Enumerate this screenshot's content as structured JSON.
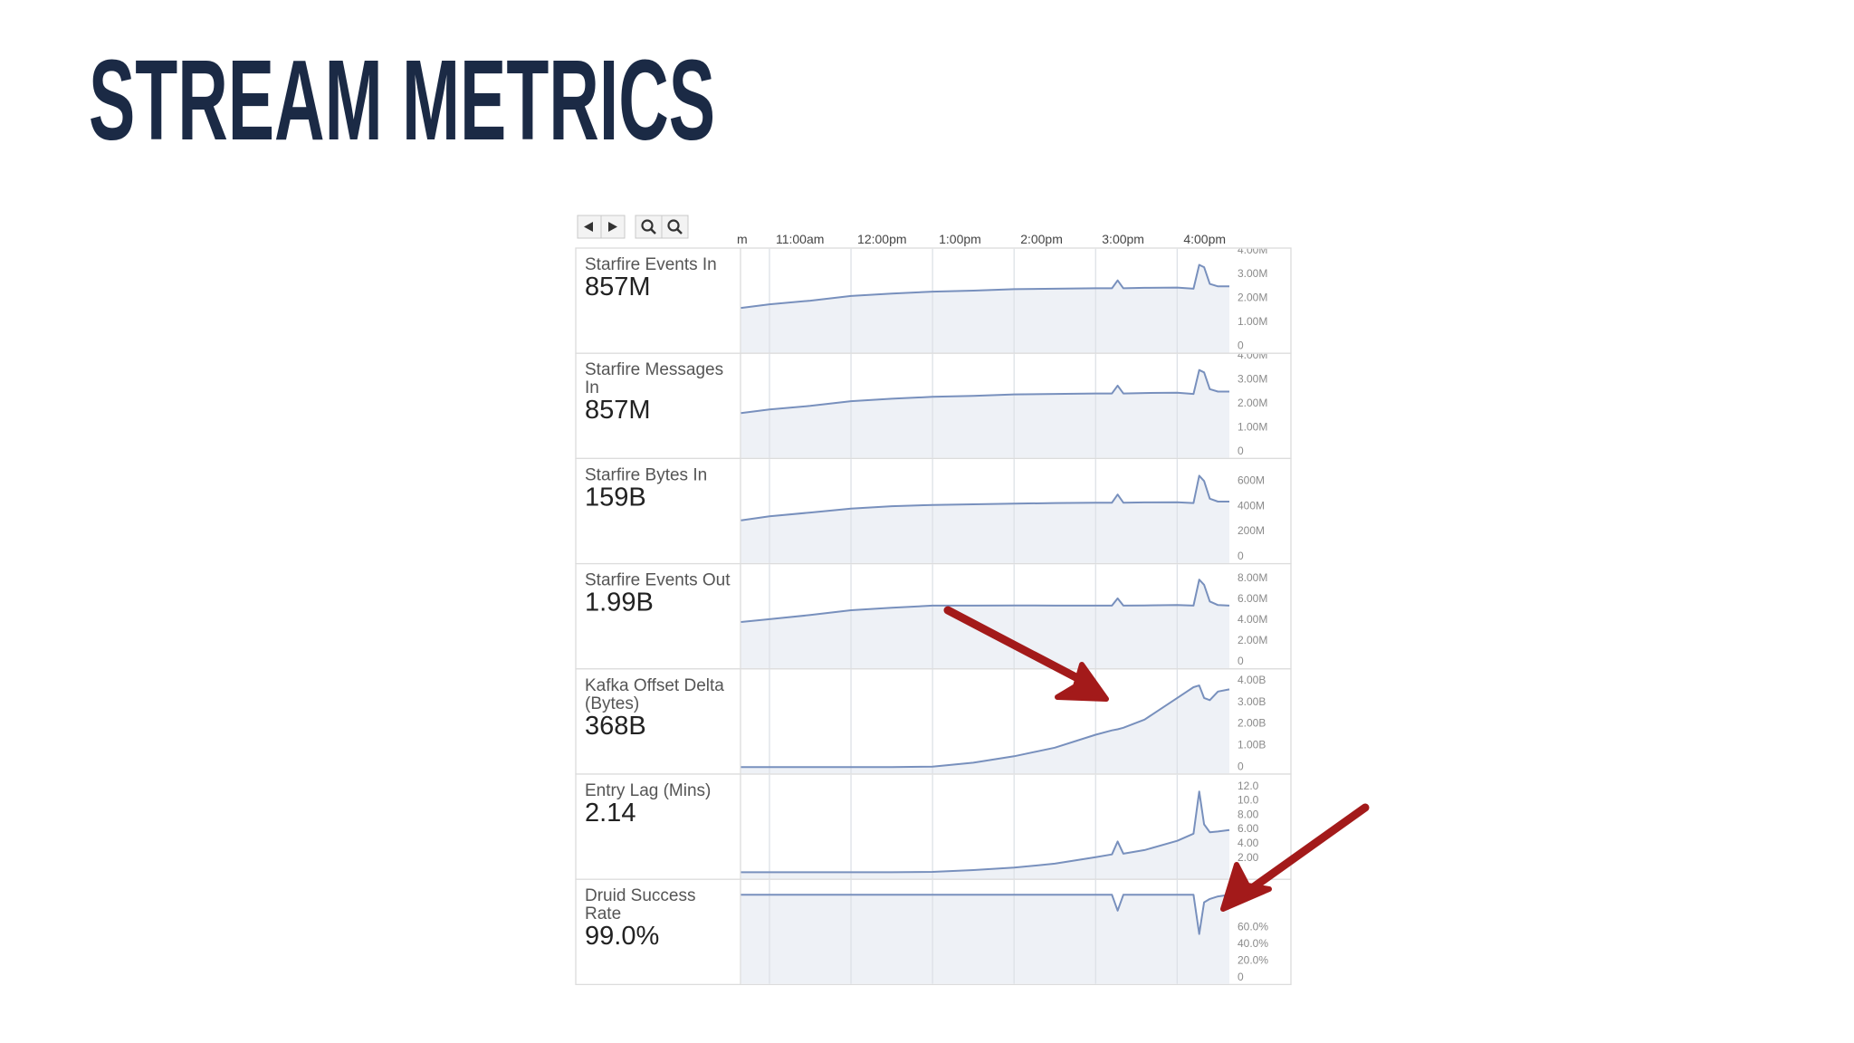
{
  "title": "STREAM METRICS",
  "time_axis": {
    "xticks": [
      {
        "value": 10,
        "label": "m"
      },
      {
        "value": 11,
        "label": "11:00am"
      },
      {
        "value": 12,
        "label": "12:00pm"
      },
      {
        "value": 13,
        "label": "1:00pm"
      },
      {
        "value": 14,
        "label": "2:00pm"
      },
      {
        "value": 15,
        "label": "3:00pm"
      },
      {
        "value": 16,
        "label": "4:00pm"
      }
    ]
  },
  "chart_data": [
    {
      "type": "line",
      "title_lines": [
        "Starfire Events In"
      ],
      "value_text": "857M",
      "color": "#7890bd",
      "xlim": [
        10.645,
        16.64
      ],
      "ylim": [
        0,
        4000000
      ],
      "yticks": [
        0,
        {
          "value": 1000000,
          "label": "1.00M"
        },
        {
          "value": 2000000,
          "label": "2.00M"
        },
        {
          "value": 3000000,
          "label": "3.00M"
        },
        {
          "value": 4000000,
          "label": "4.00M"
        }
      ],
      "x": [
        10.65,
        11,
        11.5,
        12,
        12.5,
        13,
        13.5,
        14,
        14.5,
        15,
        15.2,
        15.27,
        15.34,
        15.6,
        16,
        16.2,
        16.27,
        16.33,
        16.4,
        16.5,
        16.64
      ],
      "values": [
        1600000,
        1750000,
        1900000,
        2100000,
        2200000,
        2280000,
        2320000,
        2380000,
        2400000,
        2420000,
        2420000,
        2750000,
        2420000,
        2440000,
        2450000,
        2400000,
        3400000,
        3300000,
        2600000,
        2500000,
        2500000
      ]
    },
    {
      "type": "line",
      "title_lines": [
        "Starfire Messages",
        "In"
      ],
      "value_text": "857M",
      "color": "#7890bd",
      "xlim": [
        10.645,
        16.64
      ],
      "ylim": [
        0,
        4000000
      ],
      "yticks": [
        0,
        {
          "value": 1000000,
          "label": "1.00M"
        },
        {
          "value": 2000000,
          "label": "2.00M"
        },
        {
          "value": 3000000,
          "label": "3.00M"
        },
        {
          "value": 4000000,
          "label": "4.00M"
        }
      ],
      "x": [
        10.65,
        11,
        11.5,
        12,
        12.5,
        13,
        13.5,
        14,
        14.5,
        15,
        15.2,
        15.27,
        15.34,
        15.6,
        16,
        16.2,
        16.27,
        16.33,
        16.4,
        16.5,
        16.64
      ],
      "values": [
        1600000,
        1750000,
        1900000,
        2100000,
        2200000,
        2280000,
        2320000,
        2380000,
        2400000,
        2420000,
        2420000,
        2750000,
        2420000,
        2440000,
        2450000,
        2400000,
        3400000,
        3300000,
        2600000,
        2500000,
        2500000
      ]
    },
    {
      "type": "line",
      "title_lines": [
        "Starfire Bytes In"
      ],
      "value_text": "159B",
      "color": "#7890bd",
      "xlim": [
        10.645,
        16.64
      ],
      "ylim": [
        0,
        760000000
      ],
      "yticks": [
        0,
        {
          "value": 200000000,
          "label": "200M"
        },
        {
          "value": 400000000,
          "label": "400M"
        },
        {
          "value": 600000000,
          "label": "600M"
        }
      ],
      "x": [
        10.65,
        11,
        11.5,
        12,
        12.5,
        13,
        13.5,
        14,
        14.5,
        15,
        15.2,
        15.27,
        15.34,
        15.6,
        16,
        16.2,
        16.27,
        16.33,
        16.4,
        16.5,
        16.64
      ],
      "values": [
        288000000,
        320000000,
        350000000,
        381000000,
        400000000,
        410000000,
        415000000,
        420000000,
        425000000,
        428000000,
        428000000,
        493000000,
        428000000,
        430000000,
        432000000,
        425000000,
        642000000,
        600000000,
        460000000,
        437000000,
        437000000
      ]
    },
    {
      "type": "line",
      "title_lines": [
        "Starfire Events Out"
      ],
      "value_text": "1.99B",
      "color": "#7890bd",
      "xlim": [
        10.645,
        16.64
      ],
      "ylim": [
        0,
        9200000
      ],
      "yticks": [
        0,
        {
          "value": 2000000,
          "label": "2.00M"
        },
        {
          "value": 4000000,
          "label": "4.00M"
        },
        {
          "value": 6000000,
          "label": "6.00M"
        },
        {
          "value": 8000000,
          "label": "8.00M"
        }
      ],
      "x": [
        10.65,
        11,
        11.5,
        12,
        12.5,
        13,
        13.5,
        14,
        14.5,
        15,
        15.2,
        15.27,
        15.34,
        15.6,
        16,
        16.2,
        16.27,
        16.33,
        16.4,
        16.5,
        16.64
      ],
      "values": [
        3830000,
        4100000,
        4500000,
        4960000,
        5200000,
        5400000,
        5400000,
        5420000,
        5400000,
        5400000,
        5400000,
        6100000,
        5400000,
        5420000,
        5450000,
        5400000,
        7900000,
        7400000,
        5800000,
        5450000,
        5400000
      ]
    },
    {
      "type": "line",
      "title_lines": [
        "Kafka Offset Delta",
        "(Bytes)"
      ],
      "value_text": "368B",
      "color": "#7890bd",
      "xlim": [
        10.645,
        16.64
      ],
      "ylim": [
        0,
        4440000000
      ],
      "yticks": [
        0,
        {
          "value": 1000000000,
          "label": "1.00B"
        },
        {
          "value": 2000000000,
          "label": "2.00B"
        },
        {
          "value": 3000000000,
          "label": "3.00B"
        },
        {
          "value": 4000000000,
          "label": "4.00B"
        }
      ],
      "x": [
        10.65,
        11,
        11.5,
        12,
        12.5,
        13,
        13.5,
        14,
        14.5,
        15,
        15.2,
        15.27,
        15.34,
        15.6,
        16,
        16.2,
        16.27,
        16.33,
        16.4,
        16.5,
        16.64
      ],
      "values": [
        0,
        0,
        0,
        0,
        0,
        20000000,
        200000000,
        500000000,
        900000000,
        1500000000,
        1700000000,
        1750000000,
        1820000000,
        2200000000,
        3200000000,
        3700000000,
        3780000000,
        3200000000,
        3100000000,
        3500000000,
        3600000000
      ]
    },
    {
      "type": "line",
      "title_lines": [
        "Entry Lag (Mins)"
      ],
      "value_text": "2.14",
      "color": "#7890bd",
      "xlim": [
        10.645,
        16.64
      ],
      "ylim": [
        0,
        13.4
      ],
      "yticks": [
        {
          "value": 2,
          "label": "2.00"
        },
        {
          "value": 4,
          "label": "4.00"
        },
        {
          "value": 6,
          "label": "6.00"
        },
        {
          "value": 8,
          "label": "8.00"
        },
        {
          "value": 10,
          "label": "10.0"
        },
        {
          "value": 12,
          "label": "12.0"
        }
      ],
      "x": [
        10.65,
        11,
        11.5,
        12,
        12.5,
        13,
        13.5,
        14,
        14.5,
        15,
        15.2,
        15.27,
        15.34,
        15.6,
        16,
        16.2,
        16.27,
        16.33,
        16.4,
        16.5,
        16.64
      ],
      "values": [
        0,
        0,
        0,
        0,
        0,
        0.05,
        0.3,
        0.65,
        1.2,
        2.1,
        2.5,
        4.3,
        2.6,
        3.1,
        4.4,
        5.4,
        11.3,
        6.7,
        5.6,
        5.7,
        5.9
      ]
    },
    {
      "type": "line",
      "title_lines": [
        "Druid Success",
        "Rate"
      ],
      "value_text": "99.0%",
      "color": "#7890bd",
      "xlim": [
        10.645,
        16.64
      ],
      "ylim": [
        0,
        114.7
      ],
      "yticks": [
        0,
        {
          "value": 20,
          "label": "20.0%"
        },
        {
          "value": 40,
          "label": "40.0%"
        },
        {
          "value": 60,
          "label": "60.0%"
        }
      ],
      "x": [
        10.65,
        11,
        11.5,
        12,
        12.5,
        13,
        13.5,
        14,
        14.5,
        15,
        15.2,
        15.27,
        15.34,
        15.6,
        16,
        16.2,
        16.27,
        16.33,
        16.4,
        16.5,
        16.64
      ],
      "values": [
        99,
        99,
        99,
        99,
        99,
        99,
        99,
        99,
        99,
        99,
        99,
        80,
        99,
        99,
        99,
        99,
        52,
        90,
        94,
        97,
        99
      ]
    }
  ]
}
